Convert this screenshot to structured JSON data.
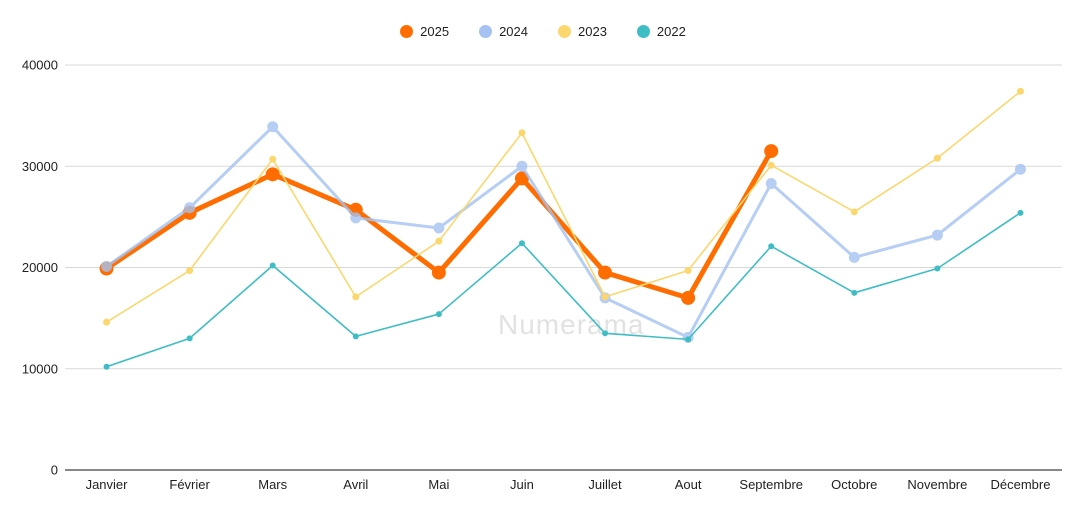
{
  "watermark": "Numerama",
  "legend": [
    {
      "label": "2025"
    },
    {
      "label": "2024"
    },
    {
      "label": "2023"
    },
    {
      "label": "2022"
    }
  ],
  "colors": {
    "series_2025": "#FF6D01",
    "series_2024": "#A5C2F2",
    "series_2023": "#FBD76D",
    "series_2022": "#3FBDC5",
    "gridline": "#d9d9d9",
    "axis_baseline": "#424242",
    "tick_text": "#1f1f1f",
    "watermark_text": "#e2e2e2"
  },
  "chart_data": {
    "type": "line",
    "categories": [
      "Janvier",
      "Février",
      "Mars",
      "Avril",
      "Mai",
      "Juin",
      "Juillet",
      "Aout",
      "Septembre",
      "Octobre",
      "Novembre",
      "Décembre"
    ],
    "series": [
      {
        "name": "2025",
        "color": "#FF6D01",
        "values": [
          19900,
          25400,
          29200,
          25700,
          19500,
          28800,
          19500,
          17000,
          31500,
          null,
          null,
          null
        ]
      },
      {
        "name": "2024",
        "color": "#A5C2F2",
        "values": [
          20100,
          25900,
          33900,
          24900,
          23900,
          30000,
          17000,
          13100,
          28300,
          21000,
          23200,
          29700
        ]
      },
      {
        "name": "2023",
        "color": "#FBD76D",
        "values": [
          14600,
          19700,
          30700,
          17100,
          22600,
          33300,
          17100,
          19700,
          30100,
          25500,
          30800,
          37400
        ]
      },
      {
        "name": "2022",
        "color": "#3FBDC5",
        "values": [
          10200,
          13000,
          20200,
          13200,
          15400,
          22400,
          13500,
          12900,
          22100,
          17500,
          19900,
          25400
        ]
      }
    ],
    "title": "",
    "xlabel": "",
    "ylabel": "",
    "ylim": [
      0,
      40000
    ],
    "ytick_step": 10000,
    "grid": true,
    "legend_position": "top"
  }
}
